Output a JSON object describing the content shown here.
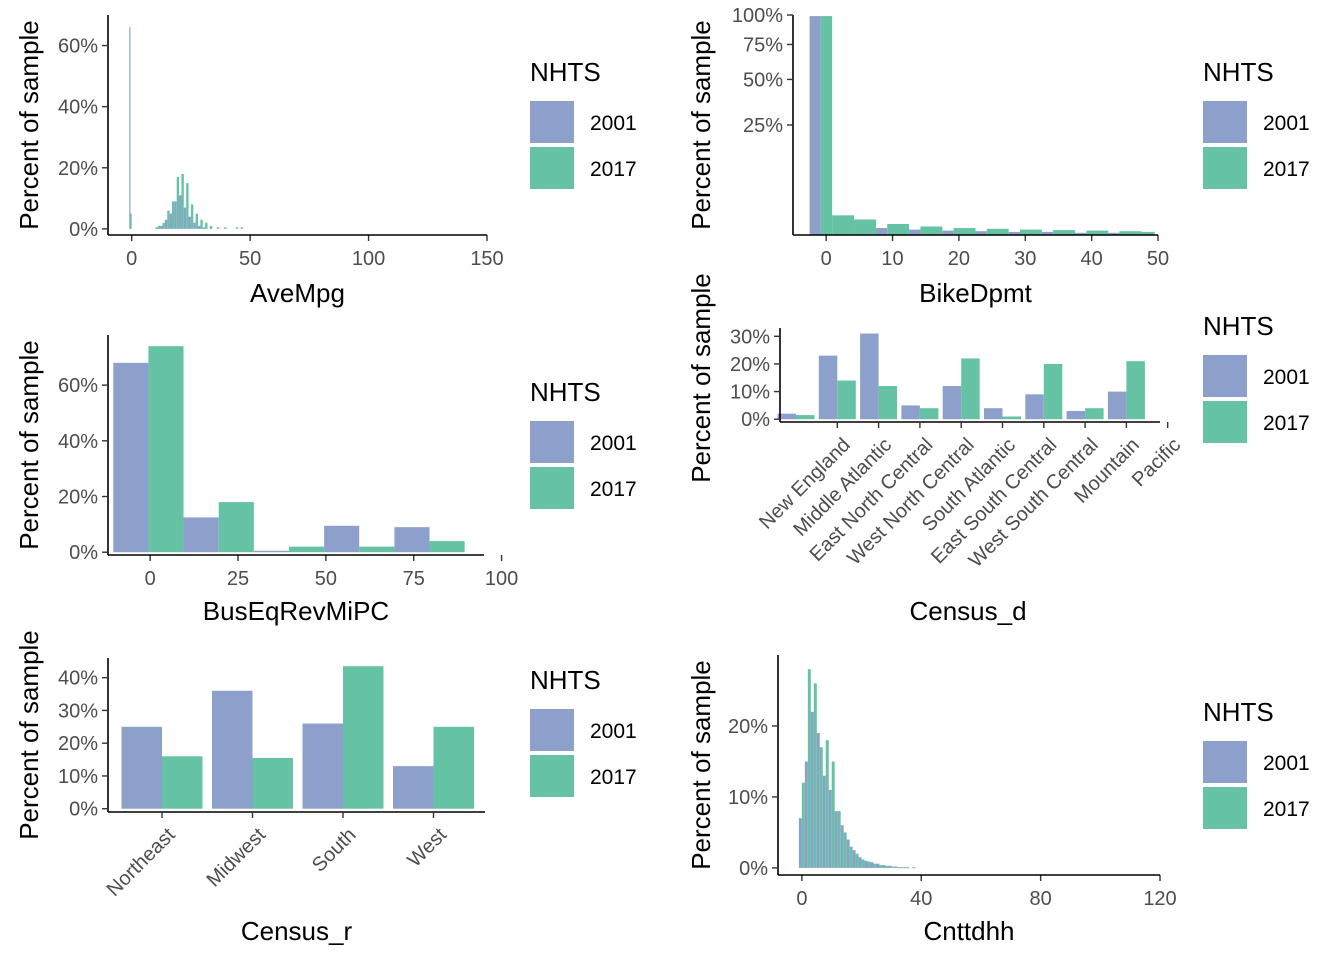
{
  "colors": {
    "2001": "#8da0cb",
    "2017": "#66c2a5"
  },
  "chart_data": [
    {
      "id": "avempg",
      "type": "bar",
      "xlabel": "AveMpg",
      "ylabel": "Percent of sample",
      "xlim": [
        -10,
        150
      ],
      "ylim": [
        -2,
        70
      ],
      "xticks": [
        {
          "v": 0,
          "label": "0"
        },
        {
          "v": 50,
          "label": "50"
        },
        {
          "v": 100,
          "label": "100"
        },
        {
          "v": 150,
          "label": "150"
        }
      ],
      "yticks": [
        {
          "v": 0,
          "label": "0%"
        },
        {
          "v": 20,
          "label": "20%"
        },
        {
          "v": 40,
          "label": "40%"
        },
        {
          "v": 60,
          "label": "60%"
        }
      ],
      "legend": {
        "title": "NHTS",
        "items": [
          "2001",
          "2017"
        ]
      },
      "series": [
        {
          "name": "2001",
          "bins": [
            [
              -1,
              -0.5,
              66
            ],
            [
              10,
              11,
              0.5
            ],
            [
              12,
              13,
              1
            ],
            [
              14,
              15,
              3
            ],
            [
              16,
              17,
              5
            ],
            [
              18,
              19,
              9
            ],
            [
              20,
              21,
              11
            ],
            [
              22,
              23,
              7
            ],
            [
              24,
              25,
              4
            ],
            [
              26,
              27,
              2
            ],
            [
              28,
              29,
              1
            ],
            [
              30,
              31,
              0.5
            ]
          ]
        },
        {
          "name": "2017",
          "bins": [
            [
              -0.5,
              0,
              5
            ],
            [
              11,
              12,
              1
            ],
            [
              13,
              14,
              2
            ],
            [
              15,
              16,
              6
            ],
            [
              17,
              18,
              9
            ],
            [
              19,
              20,
              17
            ],
            [
              21,
              22,
              18
            ],
            [
              23,
              24,
              15
            ],
            [
              25,
              26,
              8
            ],
            [
              27,
              28,
              5
            ],
            [
              29,
              30,
              3
            ],
            [
              31,
              32,
              2
            ],
            [
              33,
              34,
              1
            ],
            [
              36,
              37,
              0.5
            ],
            [
              39,
              40,
              0.5
            ],
            [
              44,
              45,
              0.5
            ],
            [
              46,
              47,
              0.5
            ]
          ]
        }
      ]
    },
    {
      "id": "bikedpmt",
      "type": "bar",
      "xlabel": "BikeDpmt",
      "ylabel": "Percent of sample",
      "scale": "sqrt",
      "xlim": [
        -5,
        50
      ],
      "ylim": [
        0,
        100
      ],
      "xticks": [
        {
          "v": 0,
          "label": "0"
        },
        {
          "v": 10,
          "label": "10"
        },
        {
          "v": 20,
          "label": "20"
        },
        {
          "v": 30,
          "label": "30"
        },
        {
          "v": 40,
          "label": "40"
        },
        {
          "v": 50,
          "label": "50"
        }
      ],
      "yticks": [
        {
          "v": 25,
          "label": "25%"
        },
        {
          "v": 50,
          "label": "50%"
        },
        {
          "v": 75,
          "label": "75%"
        },
        {
          "v": 100,
          "label": "100%"
        }
      ],
      "legend": {
        "title": "NHTS",
        "items": [
          "2001",
          "2017"
        ]
      },
      "series": [
        {
          "name": "2001",
          "bins": [
            [
              -2.5,
              -0.8,
              99
            ],
            [
              2.5,
              4.2,
              0.2
            ],
            [
              7.5,
              9.2,
              0.1
            ],
            [
              12.5,
              14.2,
              0.06
            ],
            [
              17.5,
              19.2,
              0.04
            ],
            [
              22.5,
              24.2,
              0.03
            ],
            [
              27.5,
              29.2,
              0.02
            ],
            [
              32.5,
              34.2,
              0.02
            ],
            [
              37.5,
              39.2,
              0.01
            ],
            [
              42.5,
              44.2,
              0.01
            ],
            [
              47.5,
              49.2,
              0.01
            ]
          ]
        },
        {
          "name": "2017",
          "bins": [
            [
              -0.8,
              0.9,
              99
            ],
            [
              0.9,
              4.2,
              0.8
            ],
            [
              4.2,
              7.5,
              0.5
            ],
            [
              9.2,
              12.5,
              0.25
            ],
            [
              14.2,
              17.5,
              0.15
            ],
            [
              19.2,
              22.5,
              0.1
            ],
            [
              24.2,
              27.5,
              0.08
            ],
            [
              29.2,
              32.5,
              0.06
            ],
            [
              34.2,
              37.5,
              0.05
            ],
            [
              39.2,
              42.5,
              0.04
            ],
            [
              44.2,
              47.5,
              0.03
            ],
            [
              47.5,
              49.5,
              0.02
            ]
          ]
        }
      ]
    },
    {
      "id": "buseq",
      "type": "bar",
      "xlabel": "BusEqRevMiPC",
      "ylabel": "Percent of sample",
      "xlim": [
        -12,
        95
      ],
      "ylim": [
        -1,
        78
      ],
      "xticks": [
        {
          "v": 0,
          "label": "0"
        },
        {
          "v": 25,
          "label": "25"
        },
        {
          "v": 50,
          "label": "50"
        },
        {
          "v": 75,
          "label": "75"
        },
        {
          "v": 100,
          "label": "100"
        }
      ],
      "yticks": [
        {
          "v": 0,
          "label": "0%"
        },
        {
          "v": 20,
          "label": "20%"
        },
        {
          "v": 40,
          "label": "40%"
        },
        {
          "v": 60,
          "label": "60%"
        }
      ],
      "legend": {
        "title": "NHTS",
        "items": [
          "2001",
          "2017"
        ]
      },
      "series": [
        {
          "name": "2001",
          "bins": [
            [
              -10.5,
              -0.5,
              68
            ],
            [
              9.5,
              19.5,
              12.5
            ],
            [
              29.5,
              39.5,
              0.5
            ],
            [
              49.5,
              59.5,
              9.5
            ],
            [
              69.5,
              79.5,
              9
            ]
          ]
        },
        {
          "name": "2017",
          "bins": [
            [
              -0.5,
              9.5,
              74
            ],
            [
              19.5,
              29.5,
              18
            ],
            [
              39.5,
              49.5,
              2
            ],
            [
              59.5,
              69.5,
              2
            ],
            [
              79.5,
              89.5,
              4
            ]
          ]
        }
      ]
    },
    {
      "id": "census_d",
      "type": "bar",
      "xlabel": "Census_d",
      "ylabel": "Percent of sample",
      "categories": [
        "",
        "New England",
        "Middle Atlantic",
        "East North Central",
        "West North Central",
        "South Atlantic",
        "East South Central",
        "West South Central",
        "Mountain",
        "Pacific"
      ],
      "yticks": [
        {
          "v": 0,
          "label": "0%"
        },
        {
          "v": 10,
          "label": "10%"
        },
        {
          "v": 20,
          "label": "20%"
        },
        {
          "v": 30,
          "label": "30%"
        }
      ],
      "ylim": [
        -1,
        33
      ],
      "legend": {
        "title": "NHTS",
        "items": [
          "2001",
          "2017"
        ]
      },
      "series": [
        {
          "name": "2001",
          "values": [
            2,
            23,
            31,
            5,
            12,
            4,
            9,
            3,
            10,
            0
          ]
        },
        {
          "name": "2017",
          "values": [
            1.5,
            14,
            12,
            4,
            22,
            1,
            20,
            4,
            21,
            0
          ]
        }
      ]
    },
    {
      "id": "census_r",
      "type": "bar",
      "xlabel": "Census_r",
      "ylabel": "Percent of sample",
      "categories": [
        "Northeast",
        "Midwest",
        "South",
        "West"
      ],
      "yticks": [
        {
          "v": 0,
          "label": "0%"
        },
        {
          "v": 10,
          "label": "10%"
        },
        {
          "v": 20,
          "label": "20%"
        },
        {
          "v": 30,
          "label": "30%"
        },
        {
          "v": 40,
          "label": "40%"
        }
      ],
      "ylim": [
        -1,
        46
      ],
      "legend": {
        "title": "NHTS",
        "items": [
          "2001",
          "2017"
        ]
      },
      "series": [
        {
          "name": "2001",
          "values": [
            25,
            36,
            26,
            13
          ]
        },
        {
          "name": "2017",
          "values": [
            16,
            15.5,
            43.5,
            25
          ]
        }
      ]
    },
    {
      "id": "cnttdhh",
      "type": "bar",
      "xlabel": "Cnttdhh",
      "ylabel": "Percent of sample",
      "xlim": [
        -8,
        120
      ],
      "ylim": [
        -1,
        30
      ],
      "xticks": [
        {
          "v": 0,
          "label": "0"
        },
        {
          "v": 40,
          "label": "40"
        },
        {
          "v": 80,
          "label": "80"
        },
        {
          "v": 120,
          "label": "120"
        }
      ],
      "yticks": [
        {
          "v": 0,
          "label": "0%"
        },
        {
          "v": 10,
          "label": "10%"
        },
        {
          "v": 20,
          "label": "20%"
        }
      ],
      "legend": {
        "title": "NHTS",
        "items": [
          "2001",
          "2017"
        ]
      },
      "series": [
        {
          "name": "2001",
          "bins": [
            [
              -1,
              0,
              7
            ],
            [
              1,
              2,
              15
            ],
            [
              3,
              4,
              22
            ],
            [
              5,
              6,
              19
            ],
            [
              7,
              8,
              13
            ],
            [
              9,
              10,
              11
            ],
            [
              11,
              12,
              8
            ],
            [
              13,
              14,
              6
            ],
            [
              15,
              16,
              4
            ],
            [
              17,
              18,
              2.5
            ],
            [
              19,
              20,
              1.5
            ],
            [
              21,
              22,
              1
            ],
            [
              23,
              24,
              0.8
            ],
            [
              25,
              26,
              0.6
            ],
            [
              27,
              28,
              0.4
            ],
            [
              29,
              30,
              0.3
            ],
            [
              31,
              32,
              0.2
            ],
            [
              33,
              34,
              0.1
            ],
            [
              35,
              36,
              0.1
            ],
            [
              37,
              38,
              0.1
            ]
          ]
        },
        {
          "name": "2017",
          "bins": [
            [
              0,
              1,
              12
            ],
            [
              2,
              3,
              28
            ],
            [
              4,
              5,
              26
            ],
            [
              6,
              7,
              17
            ],
            [
              8,
              9,
              18
            ],
            [
              10,
              11,
              15
            ],
            [
              12,
              13,
              8
            ],
            [
              14,
              15,
              5
            ],
            [
              16,
              17,
              3
            ],
            [
              18,
              19,
              2
            ],
            [
              20,
              21,
              1.2
            ],
            [
              22,
              23,
              0.9
            ],
            [
              24,
              25,
              0.6
            ],
            [
              26,
              27,
              0.4
            ],
            [
              28,
              29,
              0.3
            ],
            [
              30,
              31,
              0.2
            ],
            [
              32,
              33,
              0.1
            ],
            [
              34,
              35,
              0.1
            ]
          ]
        }
      ]
    }
  ]
}
